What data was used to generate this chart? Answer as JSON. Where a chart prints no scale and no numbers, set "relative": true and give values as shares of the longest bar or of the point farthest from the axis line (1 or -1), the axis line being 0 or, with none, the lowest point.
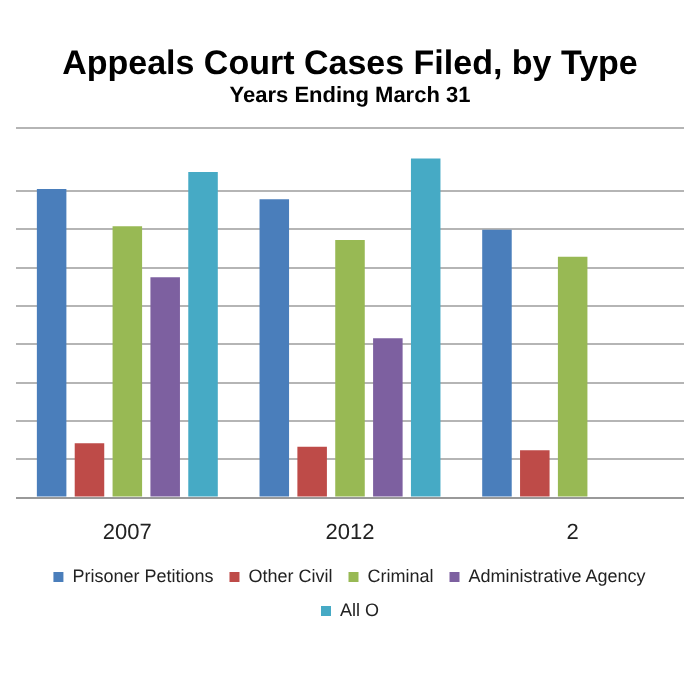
{
  "chart_data": {
    "type": "bar",
    "title": "Appeals Court Cases Filed, by Type",
    "subtitle": "Years Ending  March  31",
    "categories": [
      "2007",
      "2012",
      "2"
    ],
    "relative": true,
    "grid": "y",
    "legend": "bottom",
    "series": [
      {
        "name": "Prisoner Petitions",
        "color": "#4a7ebb",
        "values": [
          0.91,
          0.88,
          0.79
        ]
      },
      {
        "name": "Other Civil",
        "color": "#be4b48",
        "values": [
          0.16,
          0.15,
          0.14
        ]
      },
      {
        "name": "Criminal",
        "color": "#98b954",
        "values": [
          0.8,
          0.76,
          0.71
        ]
      },
      {
        "name": "Administrative Agency",
        "color": "#7d60a0",
        "values": [
          0.65,
          0.47,
          null
        ]
      },
      {
        "name": "All O",
        "color": "#46aac5",
        "values": [
          0.96,
          1,
          null
        ]
      }
    ]
  }
}
